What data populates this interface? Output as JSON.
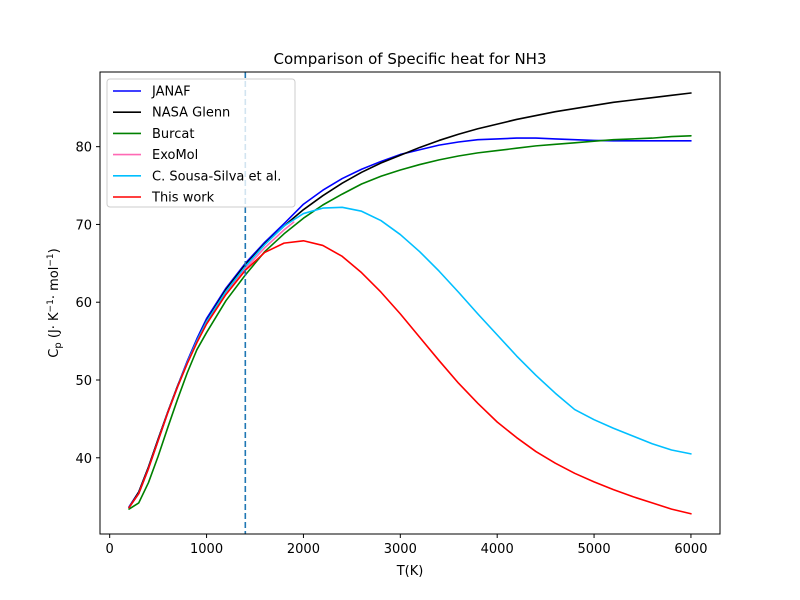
{
  "chart_data": {
    "type": "line",
    "title": "Comparison of Specific heat for NH3",
    "xlabel": "T(K)",
    "ylabel": {
      "base": "C",
      "sub": "p",
      "rest": " (J· K",
      "sup1": "−1",
      "mid": "· mol",
      "sup2": "−1",
      "end": ")"
    },
    "xlim": [
      -100,
      6300
    ],
    "ylim": [
      30.2,
      89.6
    ],
    "xticks": [
      0,
      1000,
      2000,
      3000,
      4000,
      5000,
      6000
    ],
    "yticks": [
      40,
      50,
      60,
      70,
      80
    ],
    "grid": false,
    "legend_position": "top-left",
    "vertical_line": {
      "x": 1400,
      "color": "#1f77b4",
      "style": "dashed"
    },
    "series": [
      {
        "name": "JANAF",
        "color": "#0000ff",
        "x": [
          200,
          300,
          400,
          500,
          600,
          700,
          800,
          900,
          1000,
          1200,
          1400,
          1600,
          1800,
          2000,
          2200,
          2400,
          2600,
          2800,
          3000,
          3200,
          3400,
          3600,
          3800,
          4000,
          4200,
          4400,
          4600,
          4800,
          5000,
          5200,
          5400,
          5600,
          5800,
          6000
        ],
        "y": [
          33.7,
          35.6,
          38.8,
          42.4,
          45.9,
          49.2,
          52.4,
          55.3,
          57.9,
          61.8,
          65.0,
          67.7,
          70.1,
          72.6,
          74.4,
          75.9,
          77.1,
          78.1,
          79.0,
          79.6,
          80.2,
          80.6,
          80.9,
          81.0,
          81.1,
          81.1,
          81.0,
          80.9,
          80.8,
          80.75,
          80.75,
          80.75,
          80.75,
          80.75
        ]
      },
      {
        "name": "NASA Glenn",
        "color": "#000000",
        "x": [
          200,
          300,
          400,
          500,
          600,
          700,
          800,
          900,
          1000,
          1200,
          1400,
          1600,
          1800,
          2000,
          2200,
          2400,
          2600,
          2800,
          3000,
          3200,
          3400,
          3600,
          3800,
          4000,
          4200,
          4400,
          4600,
          4800,
          5000,
          5200,
          5400,
          5600,
          5800,
          6000
        ],
        "y": [
          33.6,
          35.6,
          38.8,
          42.4,
          45.9,
          49.2,
          52.2,
          55.0,
          57.6,
          61.6,
          64.8,
          67.5,
          69.8,
          71.9,
          73.7,
          75.3,
          76.7,
          77.9,
          78.9,
          79.9,
          80.8,
          81.6,
          82.3,
          82.9,
          83.5,
          84.0,
          84.5,
          84.9,
          85.3,
          85.7,
          86.0,
          86.3,
          86.6,
          86.9
        ]
      },
      {
        "name": "Burcat",
        "color": "#008000",
        "x": [
          200,
          300,
          400,
          500,
          600,
          700,
          800,
          900,
          1000,
          1200,
          1400,
          1600,
          1800,
          2000,
          2200,
          2400,
          2600,
          2800,
          3000,
          3200,
          3400,
          3600,
          3800,
          4000,
          4200,
          4400,
          4600,
          4800,
          5000,
          5200,
          5400,
          5600,
          5800,
          6000
        ],
        "y": [
          33.4,
          34.2,
          36.8,
          40.2,
          43.9,
          47.5,
          50.9,
          53.9,
          56.1,
          60.2,
          63.5,
          66.5,
          68.8,
          70.8,
          72.5,
          73.9,
          75.2,
          76.2,
          77.0,
          77.7,
          78.3,
          78.8,
          79.2,
          79.5,
          79.8,
          80.1,
          80.3,
          80.5,
          80.7,
          80.9,
          81.0,
          81.1,
          81.3,
          81.4
        ]
      },
      {
        "name": "ExoMol",
        "color": "#ff69b4",
        "x": [
          200,
          300,
          400,
          500,
          600,
          700,
          800,
          900,
          1000,
          1200,
          1400,
          1600,
          1800,
          1900
        ],
        "y": [
          33.6,
          35.4,
          38.6,
          42.2,
          45.8,
          49.1,
          52.2,
          55.0,
          57.5,
          61.3,
          64.3,
          67.0,
          69.3,
          70.3
        ]
      },
      {
        "name": "C. Sousa-Silva et al.",
        "color": "#00bfff",
        "x": [
          200,
          300,
          400,
          500,
          600,
          700,
          800,
          900,
          1000,
          1200,
          1400,
          1600,
          1800,
          2000,
          2200,
          2400,
          2600,
          2800,
          3000,
          3200,
          3400,
          3600,
          3800,
          4000,
          4200,
          4400,
          4600,
          4800,
          5000,
          5200,
          5400,
          5600,
          5800,
          6000
        ],
        "y": [
          33.6,
          35.4,
          38.6,
          42.2,
          45.8,
          49.1,
          52.2,
          55.0,
          57.5,
          61.4,
          64.6,
          67.4,
          69.8,
          71.4,
          72.1,
          72.2,
          71.7,
          70.5,
          68.7,
          66.5,
          64.0,
          61.3,
          58.5,
          55.8,
          53.1,
          50.6,
          48.3,
          46.2,
          44.9,
          43.8,
          42.8,
          41.8,
          41.0,
          40.5
        ]
      },
      {
        "name": "This work",
        "color": "#ff0000",
        "x": [
          200,
          300,
          400,
          500,
          600,
          700,
          800,
          900,
          1000,
          1200,
          1400,
          1600,
          1800,
          2000,
          2200,
          2400,
          2600,
          2800,
          3000,
          3200,
          3400,
          3600,
          3800,
          4000,
          4200,
          4400,
          4600,
          4800,
          5000,
          5200,
          5400,
          5600,
          5800,
          6000
        ],
        "y": [
          33.6,
          35.4,
          38.6,
          42.2,
          45.8,
          49.1,
          52.1,
          54.8,
          57.2,
          61.0,
          64.1,
          66.4,
          67.6,
          67.9,
          67.3,
          65.9,
          63.8,
          61.3,
          58.5,
          55.5,
          52.5,
          49.6,
          47.0,
          44.6,
          42.6,
          40.8,
          39.3,
          38.0,
          36.9,
          35.9,
          35.0,
          34.2,
          33.4,
          32.8
        ]
      }
    ]
  }
}
